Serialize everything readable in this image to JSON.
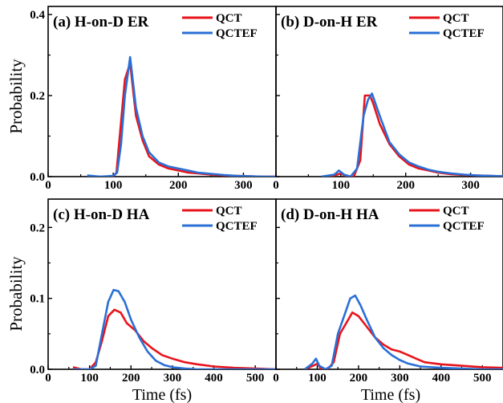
{
  "figure": {
    "ylabel": "Probability",
    "xlabel": "Time (fs)"
  },
  "colors": {
    "QCT": "#e8141b",
    "QCTEF": "#2a6fd6",
    "axis": "#000000"
  },
  "chart_data": [
    {
      "type": "line",
      "title": "(a)  H-on-D ER",
      "xlabel": "",
      "ylabel": "Probability",
      "xlim": [
        0,
        350
      ],
      "ylim": [
        0,
        0.42
      ],
      "xticks": [
        0,
        100,
        200,
        300
      ],
      "yticks": [
        0.0,
        0.2,
        0.4
      ],
      "ytick_labels": [
        "0.0",
        "0.2",
        "0.4"
      ],
      "legend": "top-right",
      "series": [
        {
          "name": "QCT",
          "x": [
            60,
            80,
            100,
            105,
            110,
            118,
            126,
            135,
            145,
            155,
            170,
            185,
            200,
            215,
            230,
            250,
            270,
            290,
            310,
            330,
            350
          ],
          "y": [
            0.0,
            0.0,
            0.0,
            0.01,
            0.1,
            0.24,
            0.28,
            0.15,
            0.09,
            0.05,
            0.03,
            0.02,
            0.015,
            0.01,
            0.008,
            0.005,
            0.003,
            0.002,
            0.001,
            0.0,
            0.0
          ]
        },
        {
          "name": "QCTEF",
          "x": [
            60,
            80,
            100,
            106,
            112,
            118,
            126,
            135,
            145,
            155,
            170,
            185,
            200,
            215,
            230,
            250,
            270,
            290,
            310,
            330,
            350
          ],
          "y": [
            0.003,
            0.0,
            0.002,
            0.01,
            0.08,
            0.2,
            0.295,
            0.17,
            0.1,
            0.06,
            0.035,
            0.025,
            0.02,
            0.015,
            0.01,
            0.007,
            0.004,
            0.002,
            0.001,
            0.0,
            0.0
          ]
        }
      ]
    },
    {
      "type": "line",
      "title": "(b)  D-on-H ER",
      "xlabel": "",
      "ylabel": "",
      "xlim": [
        0,
        350
      ],
      "ylim": [
        0,
        0.42
      ],
      "xticks": [
        0,
        100,
        200,
        300
      ],
      "yticks": [
        0.0,
        0.2,
        0.4
      ],
      "ytick_labels": [],
      "legend": "top-right",
      "series": [
        {
          "name": "QCT",
          "x": [
            70,
            90,
            100,
            110,
            120,
            130,
            137,
            145,
            150,
            160,
            175,
            190,
            205,
            220,
            235,
            250,
            270,
            290,
            310,
            330,
            350
          ],
          "y": [
            0.0,
            0.003,
            0.008,
            0.0,
            0.0,
            0.04,
            0.2,
            0.2,
            0.18,
            0.13,
            0.08,
            0.05,
            0.03,
            0.02,
            0.015,
            0.01,
            0.006,
            0.004,
            0.003,
            0.002,
            0.001
          ]
        },
        {
          "name": "QCTEF",
          "x": [
            70,
            90,
            97,
            105,
            115,
            125,
            135,
            142,
            148,
            160,
            175,
            190,
            205,
            220,
            235,
            250,
            270,
            290,
            310,
            330,
            350
          ],
          "y": [
            0.0,
            0.005,
            0.015,
            0.005,
            0.0,
            0.02,
            0.15,
            0.19,
            0.205,
            0.15,
            0.085,
            0.055,
            0.035,
            0.025,
            0.017,
            0.012,
            0.008,
            0.005,
            0.003,
            0.002,
            0.001
          ]
        }
      ]
    },
    {
      "type": "line",
      "title": "(c)  H-on-D HA",
      "xlabel": "Time (fs)",
      "ylabel": "Probability",
      "xlim": [
        0,
        550
      ],
      "ylim": [
        0,
        0.24
      ],
      "xticks": [
        0,
        100,
        200,
        300,
        400,
        500
      ],
      "yticks": [
        0.0,
        0.1,
        0.2
      ],
      "ytick_labels": [
        "0.0",
        "0.1",
        "0.2"
      ],
      "legend": "top-right",
      "series": [
        {
          "name": "QCT",
          "x": [
            60,
            80,
            100,
            115,
            130,
            145,
            160,
            175,
            190,
            210,
            230,
            250,
            275,
            300,
            330,
            360,
            400,
            450,
            500,
            550
          ],
          "y": [
            0.003,
            0.0,
            0.0,
            0.01,
            0.04,
            0.075,
            0.084,
            0.08,
            0.065,
            0.055,
            0.04,
            0.03,
            0.02,
            0.015,
            0.01,
            0.007,
            0.004,
            0.002,
            0.001,
            0.0
          ]
        },
        {
          "name": "QCTEF",
          "x": [
            60,
            80,
            100,
            115,
            130,
            145,
            158,
            170,
            185,
            200,
            220,
            240,
            260,
            280,
            300,
            330,
            360,
            400,
            450,
            550
          ],
          "y": [
            0.0,
            0.0,
            0.0,
            0.005,
            0.05,
            0.095,
            0.112,
            0.11,
            0.095,
            0.07,
            0.045,
            0.025,
            0.012,
            0.006,
            0.003,
            0.001,
            0.0,
            0.0,
            0.0,
            0.0
          ]
        }
      ]
    },
    {
      "type": "line",
      "title": "(d)  D-on-H HA",
      "xlabel": "Time (fs)",
      "ylabel": "",
      "xlim": [
        0,
        550
      ],
      "ylim": [
        0,
        0.24
      ],
      "xticks": [
        0,
        100,
        200,
        300,
        400,
        500
      ],
      "yticks": [
        0.0,
        0.1,
        0.2
      ],
      "ytick_labels": [],
      "legend": "top-right",
      "series": [
        {
          "name": "QCT",
          "x": [
            70,
            90,
            100,
            110,
            125,
            140,
            155,
            170,
            185,
            200,
            220,
            240,
            260,
            280,
            300,
            320,
            340,
            360,
            400,
            450,
            500,
            550
          ],
          "y": [
            0.0,
            0.005,
            0.008,
            0.0,
            0.0,
            0.01,
            0.05,
            0.065,
            0.08,
            0.075,
            0.06,
            0.045,
            0.035,
            0.028,
            0.025,
            0.02,
            0.015,
            0.01,
            0.007,
            0.005,
            0.003,
            0.002
          ]
        },
        {
          "name": "QCTEF",
          "x": [
            70,
            88,
            97,
            105,
            120,
            135,
            150,
            165,
            180,
            192,
            205,
            220,
            240,
            260,
            280,
            300,
            320,
            350,
            400,
            450,
            500,
            550
          ],
          "y": [
            0.0,
            0.008,
            0.015,
            0.005,
            0.0,
            0.005,
            0.05,
            0.075,
            0.1,
            0.104,
            0.09,
            0.07,
            0.045,
            0.03,
            0.02,
            0.013,
            0.008,
            0.004,
            0.002,
            0.001,
            0.0,
            0.0
          ]
        }
      ]
    }
  ]
}
